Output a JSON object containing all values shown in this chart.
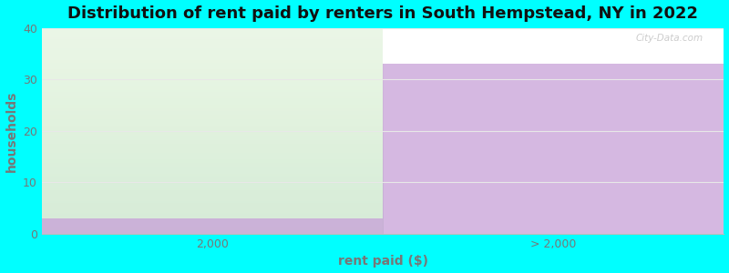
{
  "title": "Distribution of rent paid by renters in South Hempstead, NY in 2022",
  "categories": [
    "2,000",
    "> 2,000"
  ],
  "values": [
    3,
    33
  ],
  "purple_color": "#c8a0d8",
  "green_fill": "#e8f5e2",
  "purple_alpha": 0.75,
  "green_alpha": 0.85,
  "xlabel": "rent paid ($)",
  "ylabel": "households",
  "ylim": [
    0,
    40
  ],
  "yticks": [
    0,
    10,
    20,
    30,
    40
  ],
  "background_color": "#00FFFF",
  "plot_bg_color": "#FFFFFF",
  "title_fontsize": 13,
  "axis_label_fontsize": 10,
  "tick_fontsize": 9,
  "grid_color": "#e8e8e8",
  "text_color": "#777777",
  "title_color": "#111111",
  "watermark": "City-Data.com"
}
